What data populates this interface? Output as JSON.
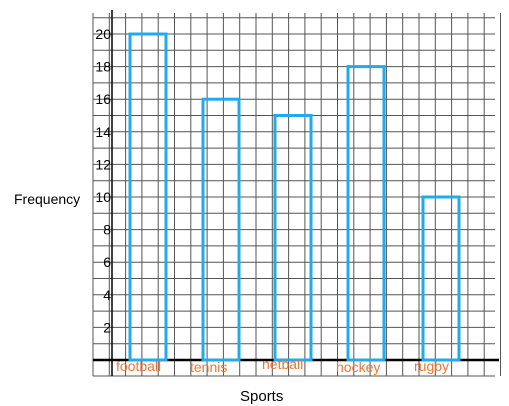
{
  "chart_data": {
    "type": "bar",
    "title": "",
    "xlabel": "Sports",
    "ylabel": "Frequency",
    "categories": [
      "football",
      "tennis",
      "netball",
      "hockey",
      "rugby"
    ],
    "values": [
      20,
      16,
      15,
      18,
      10
    ],
    "y_ticks": [
      "2",
      "4",
      "6",
      "8",
      "10",
      "12",
      "14",
      "16",
      "18",
      "20"
    ],
    "ylim": [
      0,
      22
    ],
    "grid": true,
    "colors": {
      "bar_outline": "#22aaee",
      "category_label": "#ee7733",
      "grid": "#555555",
      "axis": "#000000"
    }
  }
}
